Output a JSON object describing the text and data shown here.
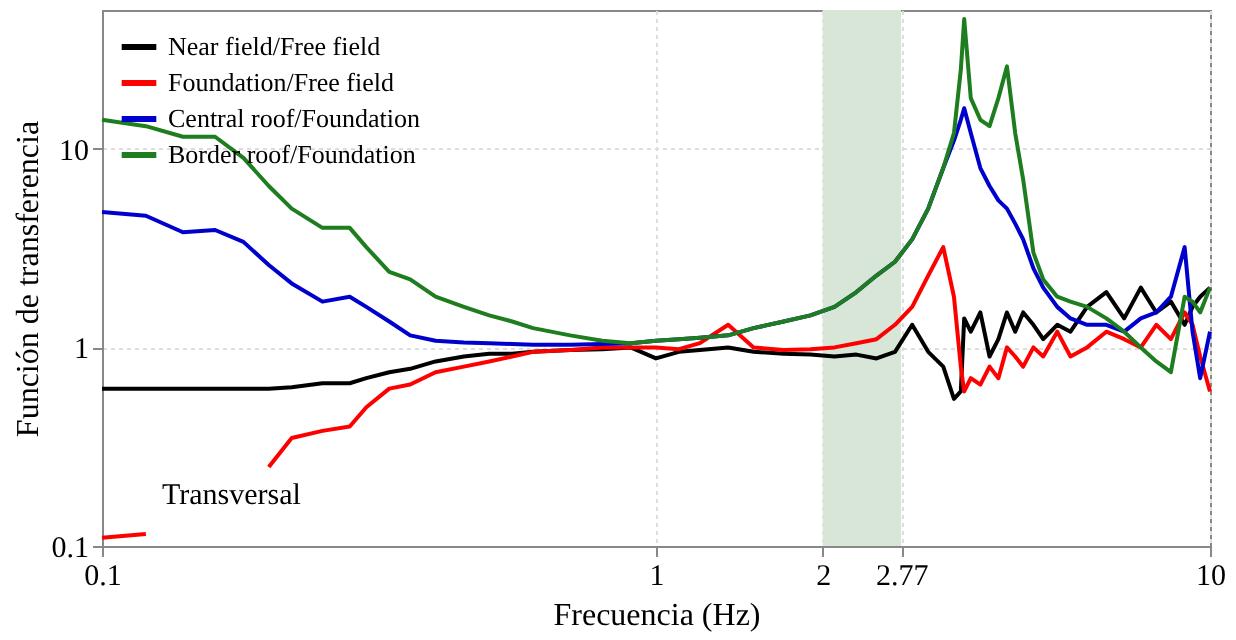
{
  "chart_data": {
    "type": "line",
    "xlabel": "Frecuencia (Hz)",
    "ylabel": "Función de transferencia",
    "x": [
      0.1,
      0.12,
      0.14,
      0.16,
      0.18,
      0.2,
      0.22,
      0.25,
      0.28,
      0.3,
      0.33,
      0.36,
      0.4,
      0.45,
      0.5,
      0.55,
      0.6,
      0.7,
      0.8,
      0.9,
      1.0,
      1.1,
      1.2,
      1.35,
      1.5,
      1.7,
      1.9,
      2.1,
      2.3,
      2.5,
      2.7,
      2.9,
      3.1,
      3.3,
      3.45,
      3.55,
      3.6,
      3.7,
      3.85,
      4.0,
      4.15,
      4.3,
      4.45,
      4.6,
      4.8,
      5.0,
      5.3,
      5.6,
      6.0,
      6.5,
      7.0,
      7.5,
      8.0,
      8.5,
      9.0,
      9.3,
      9.6,
      10
    ],
    "series": [
      {
        "name": "Near field/Free field",
        "color": "#000000",
        "values": [
          0.62,
          0.62,
          0.62,
          0.62,
          0.62,
          0.62,
          0.63,
          0.66,
          0.66,
          0.7,
          0.75,
          0.78,
          0.85,
          0.9,
          0.93,
          0.93,
          0.95,
          0.97,
          0.98,
          1.0,
          0.88,
          0.95,
          0.97,
          1.0,
          0.95,
          0.93,
          0.92,
          0.9,
          0.92,
          0.88,
          0.95,
          1.3,
          0.95,
          0.8,
          0.55,
          0.6,
          1.4,
          1.2,
          1.5,
          0.9,
          1.1,
          1.5,
          1.2,
          1.5,
          1.3,
          1.1,
          1.3,
          1.2,
          1.6,
          1.9,
          1.4,
          2.0,
          1.5,
          1.7,
          1.3,
          1.6,
          1.8,
          2.0
        ]
      },
      {
        "name": "Foundation/Free field",
        "color": "#ff0000",
        "values": [
          0.11,
          0.115,
          null,
          null,
          null,
          0.25,
          0.35,
          0.38,
          0.4,
          0.5,
          0.62,
          0.65,
          0.75,
          0.8,
          0.85,
          0.9,
          0.95,
          0.97,
          1.0,
          1.0,
          1.0,
          0.98,
          1.05,
          1.3,
          1.0,
          0.97,
          0.98,
          1.0,
          1.05,
          1.1,
          1.3,
          1.6,
          2.3,
          3.2,
          1.8,
          0.8,
          0.6,
          0.7,
          0.65,
          0.8,
          0.7,
          1.0,
          0.9,
          0.8,
          1.0,
          0.9,
          1.2,
          0.9,
          1.0,
          1.2,
          1.1,
          1.0,
          1.3,
          1.1,
          1.5,
          1.3,
          0.9,
          0.6
        ]
      },
      {
        "name": "Central roof/Foundation",
        "color": "#0000cc",
        "values": [
          4.8,
          4.6,
          3.8,
          3.9,
          3.4,
          2.6,
          2.1,
          1.7,
          1.8,
          1.6,
          1.35,
          1.15,
          1.08,
          1.06,
          1.05,
          1.04,
          1.03,
          1.03,
          1.04,
          1.05,
          1.08,
          1.1,
          1.12,
          1.15,
          1.25,
          1.35,
          1.45,
          1.6,
          1.9,
          2.3,
          2.7,
          3.5,
          5,
          8,
          11,
          14,
          16,
          12,
          8,
          6.5,
          5.5,
          5,
          4.2,
          3.5,
          2.5,
          2.0,
          1.6,
          1.4,
          1.3,
          1.3,
          1.2,
          1.4,
          1.5,
          1.8,
          3.2,
          1.2,
          0.7,
          1.2
        ]
      },
      {
        "name": "Border roof/Foundation",
        "color": "#1e7d1e",
        "values": [
          14,
          13,
          11.5,
          11.5,
          9,
          6.5,
          5,
          4,
          4,
          3.2,
          2.4,
          2.2,
          1.8,
          1.6,
          1.45,
          1.35,
          1.25,
          1.15,
          1.08,
          1.05,
          1.08,
          1.1,
          1.12,
          1.15,
          1.25,
          1.35,
          1.45,
          1.6,
          1.9,
          2.3,
          2.7,
          3.5,
          5,
          8,
          12,
          25,
          45,
          18,
          14,
          13,
          18,
          26,
          12,
          7,
          3,
          2.2,
          1.8,
          1.7,
          1.6,
          1.4,
          1.2,
          1.0,
          0.85,
          0.75,
          1.8,
          1.7,
          1.5,
          2.0
        ]
      }
    ],
    "log": "xy",
    "xlim": [
      0.1,
      10
    ],
    "ylim": [
      0.1,
      50
    ],
    "xticks": [
      0.1,
      1,
      2,
      2.77,
      10
    ],
    "yticks": [
      0.1,
      1,
      10
    ],
    "bands": [
      {
        "axis": "x",
        "from": 2,
        "to": 2.77,
        "color": "#d8e6d8"
      }
    ],
    "annotations": [
      "Transversal"
    ],
    "grid": true,
    "legend": "top left"
  }
}
